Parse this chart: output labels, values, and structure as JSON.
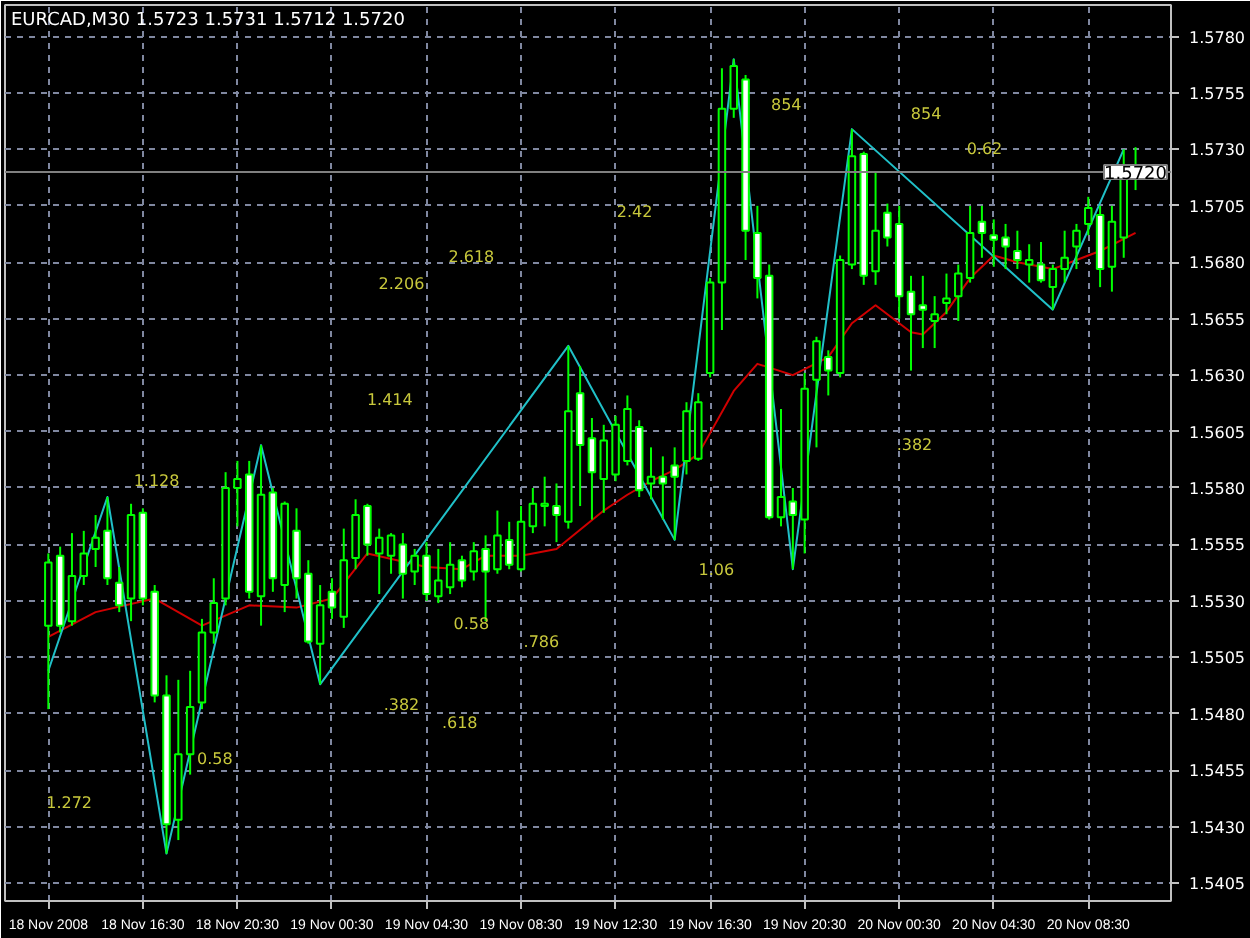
{
  "chart_data": {
    "type": "candlestick",
    "title": "EURCAD,M30 1.5723 1.5731 1.5712 1.5720",
    "color": "#00ff00",
    "x": [
      "2008-11-18T12:30",
      "2008-11-18T13:00",
      "2008-11-18T13:30",
      "2008-11-18T14:00",
      "2008-11-18T14:30",
      "2008-11-18T15:00",
      "2008-11-18T15:30",
      "2008-11-18T16:00",
      "2008-11-18T16:30",
      "2008-11-18T17:00",
      "2008-11-18T17:30",
      "2008-11-18T18:00",
      "2008-11-18T18:30",
      "2008-11-18T19:00",
      "2008-11-18T19:30",
      "2008-11-18T20:00",
      "2008-11-18T20:30",
      "2008-11-18T21:00",
      "2008-11-18T21:30",
      "2008-11-18T22:00",
      "2008-11-18T22:30",
      "2008-11-18T23:00",
      "2008-11-18T23:30",
      "2008-11-19T00:00",
      "2008-11-19T00:30",
      "2008-11-19T01:00",
      "2008-11-19T01:30",
      "2008-11-19T02:00",
      "2008-11-19T02:30",
      "2008-11-19T03:00",
      "2008-11-19T03:30",
      "2008-11-19T04:00",
      "2008-11-19T04:30",
      "2008-11-19T05:00",
      "2008-11-19T05:30",
      "2008-11-19T06:00",
      "2008-11-19T06:30",
      "2008-11-19T07:00",
      "2008-11-19T07:30",
      "2008-11-19T08:00",
      "2008-11-19T08:30",
      "2008-11-19T09:00",
      "2008-11-19T09:30",
      "2008-11-19T10:00",
      "2008-11-19T10:30",
      "2008-11-19T11:00",
      "2008-11-19T11:30",
      "2008-11-19T12:00",
      "2008-11-19T12:30",
      "2008-11-19T13:00",
      "2008-11-19T13:30",
      "2008-11-19T14:00",
      "2008-11-19T14:30",
      "2008-11-19T15:00",
      "2008-11-19T15:30",
      "2008-11-19T16:00",
      "2008-11-19T16:30",
      "2008-11-19T17:00",
      "2008-11-19T17:30",
      "2008-11-19T18:00",
      "2008-11-19T18:30",
      "2008-11-19T19:00",
      "2008-11-19T19:30",
      "2008-11-19T20:00",
      "2008-11-19T20:30",
      "2008-11-19T21:00",
      "2008-11-19T21:30",
      "2008-11-19T22:00",
      "2008-11-19T22:30",
      "2008-11-19T23:00",
      "2008-11-19T23:30",
      "2008-11-20T00:00",
      "2008-11-20T00:30",
      "2008-11-20T01:00",
      "2008-11-20T01:30",
      "2008-11-20T02:00",
      "2008-11-20T02:30",
      "2008-11-20T03:00",
      "2008-11-20T03:30",
      "2008-11-20T04:00",
      "2008-11-20T04:30",
      "2008-11-20T05:00",
      "2008-11-20T05:30",
      "2008-11-20T06:00",
      "2008-11-20T06:30",
      "2008-11-20T07:00",
      "2008-11-20T07:30",
      "2008-11-20T08:00",
      "2008-11-20T08:30",
      "2008-11-20T09:00",
      "2008-11-20T09:30",
      "2008-11-20T10:00",
      "2008-11-20T10:30"
    ],
    "ohlc": [
      [
        1.5519,
        1.5551,
        1.5482,
        1.5547
      ],
      [
        1.555,
        1.5554,
        1.5516,
        1.5519
      ],
      [
        1.5521,
        1.556,
        1.5519,
        1.5541
      ],
      [
        1.5541,
        1.5561,
        1.5537,
        1.5551
      ],
      [
        1.5553,
        1.5568,
        1.5545,
        1.5558
      ],
      [
        1.5561,
        1.5576,
        1.5537,
        1.554
      ],
      [
        1.5538,
        1.5545,
        1.5525,
        1.5528
      ],
      [
        1.5531,
        1.5573,
        1.5521,
        1.5568
      ],
      [
        1.5569,
        1.5571,
        1.5528,
        1.5531
      ],
      [
        1.5534,
        1.5537,
        1.5485,
        1.5488
      ],
      [
        1.5488,
        1.5497,
        1.5418,
        1.5431
      ],
      [
        1.5433,
        1.5495,
        1.5424,
        1.5462
      ],
      [
        1.5462,
        1.5499,
        1.5453,
        1.5483
      ],
      [
        1.5485,
        1.5522,
        1.5482,
        1.5516
      ],
      [
        1.5516,
        1.554,
        1.5511,
        1.5529
      ],
      [
        1.5531,
        1.5587,
        1.5528,
        1.558
      ],
      [
        1.558,
        1.5592,
        1.5563,
        1.5584
      ],
      [
        1.5586,
        1.5592,
        1.5531,
        1.5534
      ],
      [
        1.5532,
        1.5599,
        1.5519,
        1.5577
      ],
      [
        1.5578,
        1.558,
        1.5534,
        1.554
      ],
      [
        1.5537,
        1.5574,
        1.5525,
        1.5573
      ],
      [
        1.5561,
        1.5571,
        1.5531,
        1.554
      ],
      [
        1.5542,
        1.5548,
        1.5511,
        1.5512
      ],
      [
        1.5511,
        1.5537,
        1.5493,
        1.5528
      ],
      [
        1.5534,
        1.554,
        1.5522,
        1.5527
      ],
      [
        1.5523,
        1.5562,
        1.5518,
        1.5548
      ],
      [
        1.5549,
        1.5575,
        1.5544,
        1.5568
      ],
      [
        1.5572,
        1.5573,
        1.555,
        1.5555
      ],
      [
        1.5551,
        1.5562,
        1.5533,
        1.5558
      ],
      [
        1.555,
        1.556,
        1.5542,
        1.5559
      ],
      [
        1.5555,
        1.556,
        1.5531,
        1.5542
      ],
      [
        1.5543,
        1.5553,
        1.5537,
        1.555
      ],
      [
        1.555,
        1.5556,
        1.553,
        1.5533
      ],
      [
        1.5532,
        1.5553,
        1.5529,
        1.5539
      ],
      [
        1.5536,
        1.5556,
        1.5533,
        1.5546
      ],
      [
        1.5548,
        1.555,
        1.5536,
        1.5539
      ],
      [
        1.5543,
        1.5556,
        1.5539,
        1.5552
      ],
      [
        1.5553,
        1.5559,
        1.5521,
        1.5543
      ],
      [
        1.5544,
        1.557,
        1.5542,
        1.5559
      ],
      [
        1.5557,
        1.5565,
        1.5544,
        1.5546
      ],
      [
        1.5544,
        1.5572,
        1.5543,
        1.5565
      ],
      [
        1.5563,
        1.558,
        1.556,
        1.5573
      ],
      [
        1.5572,
        1.5585,
        1.5563,
        1.5573
      ],
      [
        1.5572,
        1.5582,
        1.5556,
        1.5568
      ],
      [
        1.5565,
        1.5643,
        1.5562,
        1.5614
      ],
      [
        1.5622,
        1.5634,
        1.5572,
        1.5599
      ],
      [
        1.5602,
        1.5611,
        1.5566,
        1.5587
      ],
      [
        1.5584,
        1.5608,
        1.5569,
        1.5601
      ],
      [
        1.5586,
        1.5612,
        1.5583,
        1.5608
      ],
      [
        1.5592,
        1.5621,
        1.559,
        1.5615
      ],
      [
        1.5607,
        1.561,
        1.5576,
        1.5579
      ],
      [
        1.5582,
        1.5598,
        1.5575,
        1.5585
      ],
      [
        1.5585,
        1.5594,
        1.5566,
        1.5582
      ],
      [
        1.559,
        1.5598,
        1.5557,
        1.5585
      ],
      [
        1.5592,
        1.5618,
        1.5586,
        1.5614
      ],
      [
        1.5593,
        1.5622,
        1.5592,
        1.5618
      ],
      [
        1.5631,
        1.5673,
        1.5629,
        1.5671
      ],
      [
        1.5671,
        1.5766,
        1.565,
        1.5748
      ],
      [
        1.5748,
        1.577,
        1.5744,
        1.5767
      ],
      [
        1.5761,
        1.5763,
        1.5681,
        1.5694
      ],
      [
        1.5693,
        1.5705,
        1.5664,
        1.5673
      ],
      [
        1.5674,
        1.5679,
        1.5566,
        1.5567
      ],
      [
        1.5567,
        1.5615,
        1.5563,
        1.5576
      ],
      [
        1.5574,
        1.558,
        1.5544,
        1.5568
      ],
      [
        1.5566,
        1.5631,
        1.5551,
        1.5624
      ],
      [
        1.5628,
        1.5647,
        1.5598,
        1.5645
      ],
      [
        1.5638,
        1.5641,
        1.5621,
        1.5632
      ],
      [
        1.5631,
        1.5683,
        1.5629,
        1.5681
      ],
      [
        1.5679,
        1.5739,
        1.5677,
        1.5727
      ],
      [
        1.5728,
        1.5729,
        1.567,
        1.5674
      ],
      [
        1.5676,
        1.572,
        1.567,
        1.5694
      ],
      [
        1.5702,
        1.5706,
        1.5687,
        1.5691
      ],
      [
        1.5697,
        1.5705,
        1.5655,
        1.5665
      ],
      [
        1.5667,
        1.5674,
        1.5632,
        1.5657
      ],
      [
        1.5661,
        1.5674,
        1.5642,
        1.5659
      ],
      [
        1.5654,
        1.5665,
        1.5642,
        1.5657
      ],
      [
        1.5662,
        1.5675,
        1.5657,
        1.5664
      ],
      [
        1.5665,
        1.5679,
        1.5654,
        1.5675
      ],
      [
        1.5673,
        1.5705,
        1.5671,
        1.5693
      ],
      [
        1.5698,
        1.5705,
        1.5682,
        1.5693
      ],
      [
        1.5692,
        1.5699,
        1.5678,
        1.569
      ],
      [
        1.5691,
        1.5697,
        1.5677,
        1.5687
      ],
      [
        1.5685,
        1.5694,
        1.5677,
        1.5681
      ],
      [
        1.5679,
        1.5688,
        1.5671,
        1.5681
      ],
      [
        1.5679,
        1.5689,
        1.5671,
        1.5672
      ],
      [
        1.5669,
        1.5679,
        1.5659,
        1.5677
      ],
      [
        1.5677,
        1.5694,
        1.5671,
        1.5682
      ],
      [
        1.5687,
        1.5697,
        1.5677,
        1.5694
      ],
      [
        1.5697,
        1.5709,
        1.5692,
        1.5704
      ],
      [
        1.5701,
        1.5705,
        1.5669,
        1.5677
      ],
      [
        1.5678,
        1.5705,
        1.5667,
        1.5698
      ],
      [
        1.5691,
        1.573,
        1.5682,
        1.5721
      ],
      [
        1.5723,
        1.5731,
        1.5712,
        1.572
      ]
    ],
    "series": [
      {
        "type": "line",
        "color": "#d00000",
        "x": [
          "2008-11-18T12:30",
          "2008-11-18T14:30",
          "2008-11-18T17:00",
          "2008-11-18T19:00",
          "2008-11-18T21:00",
          "2008-11-18T23:00",
          "2008-11-19T00:30",
          "2008-11-19T02:00",
          "2008-11-19T04:30",
          "2008-11-19T06:00",
          "2008-11-19T07:00",
          "2008-11-19T08:30",
          "2008-11-19T10:00",
          "2008-11-19T12:00",
          "2008-11-19T13:00",
          "2008-11-19T14:00",
          "2008-11-19T15:00",
          "2008-11-19T16:00",
          "2008-11-19T17:30",
          "2008-11-19T18:30",
          "2008-11-19T20:00",
          "2008-11-19T21:30",
          "2008-11-19T22:30",
          "2008-11-19T23:30",
          "2008-11-20T01:00",
          "2008-11-20T01:30",
          "2008-11-20T02:30",
          "2008-11-20T03:30",
          "2008-11-20T04:30",
          "2008-11-20T05:30",
          "2008-11-20T07:00",
          "2008-11-20T08:30",
          "2008-11-20T09:00",
          "2008-11-20T10:30"
        ],
        "values": [
          1.5514,
          1.5525,
          1.5531,
          1.5519,
          1.5528,
          1.5527,
          1.5531,
          1.5551,
          1.5545,
          1.5544,
          1.555,
          1.555,
          1.5553,
          1.557,
          1.5577,
          1.5583,
          1.5588,
          1.5595,
          1.5623,
          1.5635,
          1.563,
          1.5638,
          1.5653,
          1.5661,
          1.5649,
          1.5648,
          1.5658,
          1.5673,
          1.5683,
          1.568,
          1.5677,
          1.5683,
          1.5685,
          1.5693
        ]
      },
      {
        "type": "line",
        "color": "#20c0c8",
        "x": [
          "2008-11-18T12:30",
          "2008-11-18T15:00",
          "2008-11-18T17:30",
          "2008-11-18T21:30",
          "2008-11-19T00:00",
          "2008-11-19T10:30",
          "2008-11-19T15:00",
          "2008-11-19T17:30",
          "2008-11-19T20:00",
          "2008-11-19T22:30",
          "2008-11-20T07:00",
          "2008-11-20T10:00"
        ],
        "values": [
          1.5499,
          1.5576,
          1.5418,
          1.5599,
          1.5493,
          1.5643,
          1.5557,
          1.577,
          1.5544,
          1.5739,
          1.5659,
          1.573
        ]
      }
    ],
    "annotations": [
      "1.272",
      "0.58",
      "1.128",
      "1.414",
      "2.206",
      "2.618",
      ".382",
      ".618",
      "0.58",
      ".786",
      "2.42",
      "1.06",
      "854",
      "854",
      "0.62",
      ".382"
    ],
    "ref_lines": [
      {
        "axis": "y",
        "value": 1.572,
        "label": "1.5720",
        "color": "#808080"
      }
    ],
    "xlim": [
      "2008-11-18T10:40",
      "2008-11-20T12:00"
    ],
    "ylim": [
      1.5397,
      1.5794
    ],
    "xticks": [
      {
        "value": "2008-11-18T12:30",
        "label": "18 Nov 2008"
      },
      {
        "value": "2008-11-18T16:30",
        "label": "18 Nov 16:30"
      },
      {
        "value": "2008-11-18T20:30",
        "label": "18 Nov 20:30"
      },
      {
        "value": "2008-11-19T00:30",
        "label": "19 Nov 00:30"
      },
      {
        "value": "2008-11-19T04:30",
        "label": "19 Nov 04:30"
      },
      {
        "value": "2008-11-19T08:30",
        "label": "19 Nov 08:30"
      },
      {
        "value": "2008-11-19T12:30",
        "label": "19 Nov 12:30"
      },
      {
        "value": "2008-11-19T16:30",
        "label": "19 Nov 16:30"
      },
      {
        "value": "2008-11-19T20:30",
        "label": "19 Nov 20:30"
      },
      {
        "value": "2008-11-20T00:30",
        "label": "20 Nov 00:30"
      },
      {
        "value": "2008-11-20T04:30",
        "label": "20 Nov 04:30"
      },
      {
        "value": "2008-11-20T08:30",
        "label": "20 Nov 08:30"
      }
    ],
    "yticks": [
      {
        "value": 1.5405,
        "label": "1.5405"
      },
      {
        "value": 1.543,
        "label": "1.5430"
      },
      {
        "value": 1.5455,
        "label": "1.5455"
      },
      {
        "value": 1.548,
        "label": "1.5480"
      },
      {
        "value": 1.5505,
        "label": "1.5505"
      },
      {
        "value": 1.553,
        "label": "1.5530"
      },
      {
        "value": 1.5555,
        "label": "1.5555"
      },
      {
        "value": 1.558,
        "label": "1.5580"
      },
      {
        "value": 1.5605,
        "label": "1.5605"
      },
      {
        "value": 1.563,
        "label": "1.5630"
      },
      {
        "value": 1.5655,
        "label": "1.5655"
      },
      {
        "value": 1.568,
        "label": "1.5680"
      },
      {
        "value": 1.5705,
        "label": "1.5705"
      },
      {
        "value": 1.573,
        "label": "1.5730"
      },
      {
        "value": 1.5755,
        "label": "1.5755"
      },
      {
        "value": 1.578,
        "label": "1.5780"
      }
    ],
    "grid": true
  }
}
